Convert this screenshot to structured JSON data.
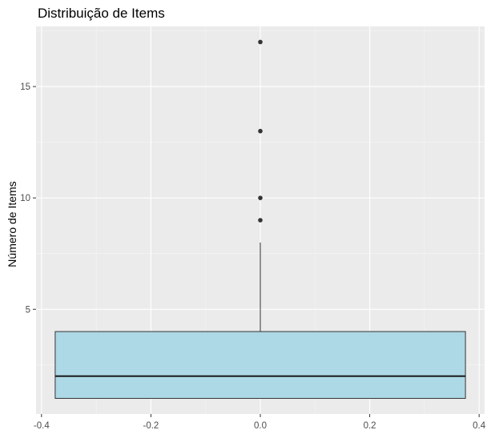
{
  "chart_data": {
    "type": "boxplot",
    "title": "Distribuição de Items",
    "xlabel": "",
    "ylabel": "Número de Items",
    "xlim": [
      -0.41,
      0.41
    ],
    "ylim": [
      0.3,
      17.7
    ],
    "x_ticks": [
      -0.4,
      -0.2,
      0.0,
      0.2,
      0.4
    ],
    "x_tick_labels": [
      "-0.4",
      "-0.2",
      "0.0",
      "0.2",
      "0.4"
    ],
    "y_ticks": [
      5,
      10,
      15
    ],
    "y_tick_labels": [
      "5",
      "10",
      "15"
    ],
    "grid": true,
    "box": {
      "x_center": 0.0,
      "x_left": -0.375,
      "x_right": 0.375,
      "q1": 1,
      "median": 2,
      "q3": 4,
      "whisker_low": 1,
      "whisker_high": 8,
      "outliers": [
        9,
        10,
        13,
        17
      ]
    },
    "colors": {
      "panel_background": "#ebebeb",
      "grid_major": "#ffffff",
      "grid_minor": "#f5f5f5",
      "box_fill": "#add8e6",
      "box_stroke": "#333333",
      "median": "#1a1a1a",
      "outlier": "#333333",
      "tick_text": "#4d4d4d"
    }
  }
}
